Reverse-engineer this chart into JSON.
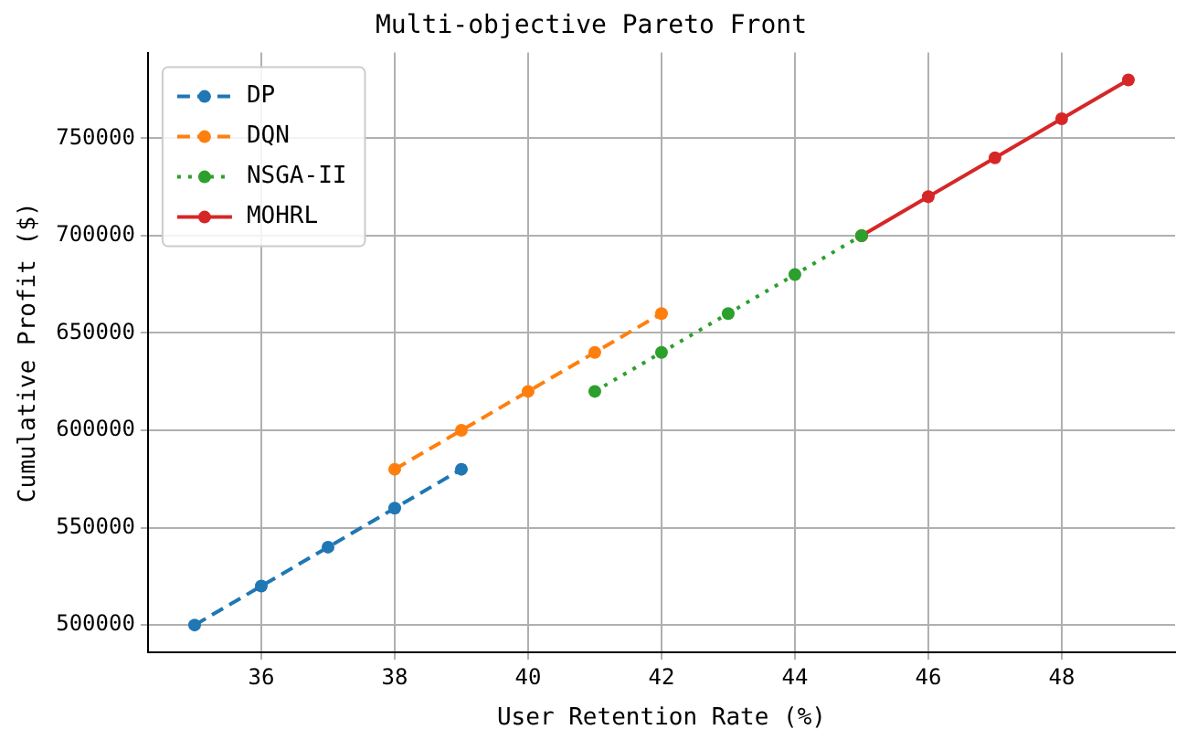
{
  "chart_data": {
    "type": "line",
    "title": "Multi-objective Pareto Front",
    "xlabel": "User Retention Rate (%)",
    "ylabel": "Cumulative Profit ($)",
    "xlim": [
      34.3,
      49.7
    ],
    "xticks": [
      36,
      38,
      40,
      42,
      44,
      46,
      48
    ],
    "ylim": [
      486000,
      794000
    ],
    "yticks": [
      500000,
      550000,
      600000,
      650000,
      700000,
      750000
    ],
    "grid": true,
    "legend": "top left",
    "marker": "circle",
    "series": [
      {
        "name": "DP",
        "color": "#1f77b4",
        "line_style": "dashed",
        "x": [
          35,
          36,
          37,
          38,
          39
        ],
        "values": [
          500000,
          520000,
          540000,
          560000,
          580000
        ]
      },
      {
        "name": "DQN",
        "color": "#ff7f0e",
        "line_style": "dashed",
        "x": [
          38,
          39,
          40,
          41,
          42
        ],
        "values": [
          580000,
          600000,
          620000,
          640000,
          660000
        ]
      },
      {
        "name": "NSGA-II",
        "color": "#2ca02c",
        "line_style": "dotted",
        "x": [
          41,
          42,
          43,
          44,
          45
        ],
        "values": [
          620000,
          640000,
          660000,
          680000,
          700000
        ]
      },
      {
        "name": "MOHRL",
        "color": "#d62728",
        "line_style": "solid",
        "x": [
          45,
          46,
          47,
          48,
          49
        ],
        "values": [
          700000,
          720000,
          740000,
          760000,
          780000
        ]
      }
    ]
  }
}
